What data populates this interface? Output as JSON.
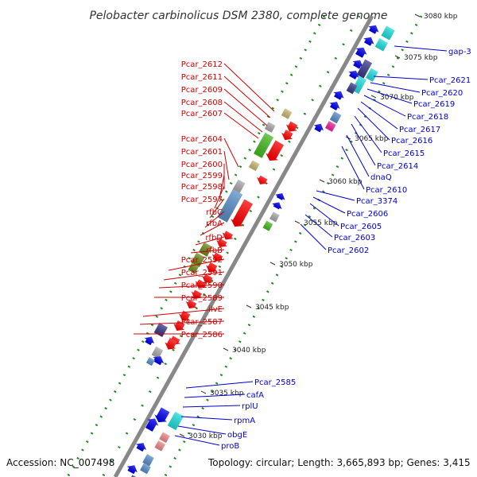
{
  "title": "Pelobacter carbinolicus DSM 2380, complete genome",
  "footer": {
    "accession": "Accession: NC_007498",
    "topology": "Topology: circular; Length: 3,665,893 bp; Genes: 3,415"
  },
  "ticks": [
    "3080 kbp",
    "3075 kbp",
    "3070 kbp",
    "3065 kbp",
    "3060 kbp",
    "3055 kbp",
    "3050 kbp",
    "3045 kbp",
    "3040 kbp",
    "3035 kbp",
    "3030 kbp"
  ],
  "left_labels": [
    "Pcar_2612",
    "Pcar_2611",
    "Pcar_2609",
    "Pcar_2608",
    "Pcar_2607",
    "Pcar_2604",
    "Pcar_2601",
    "Pcar_2600",
    "Pcar_2599",
    "Pcar_2598",
    "Pcar_2597",
    "rfbC",
    "rfbA",
    "rfbD",
    "rfbB",
    "Pcar_2592",
    "Pcar_2591",
    "Pcar_2590",
    "Pcar_2589",
    "ilvE",
    "Pcar_2587",
    "Pcar_2586"
  ],
  "right_labels": [
    "gap-3",
    "Pcar_2621",
    "Pcar_2620",
    "Pcar_2619",
    "Pcar_2618",
    "Pcar_2617",
    "Pcar_2616",
    "Pcar_2615",
    "Pcar_2614",
    "dnaQ",
    "Pcar_2610",
    "Pcar_3374",
    "Pcar_2606",
    "Pcar_2605",
    "Pcar_2603",
    "Pcar_2602",
    "Pcar_2585",
    "cafA",
    "rplU",
    "rpmA",
    "obgE",
    "proB"
  ],
  "colors": {
    "backbone": "#888888",
    "tick_dots": "#228822",
    "left_labels": "#cc0000",
    "right_labels": "#0000cc",
    "gene_red": "#ff0000",
    "gene_blue": "#0000ee",
    "gene_cyan": "#22dddd",
    "gene_steelblue": "#5a8fc8",
    "gene_green": "#44bb22",
    "gene_olive": "#6b8c1e",
    "gene_khaki": "#c8b870",
    "gene_darkslate": "#3a3a88",
    "gene_magenta": "#ee2299",
    "gene_salmon": "#ee8888",
    "gene_gray": "#aaaaaa"
  }
}
